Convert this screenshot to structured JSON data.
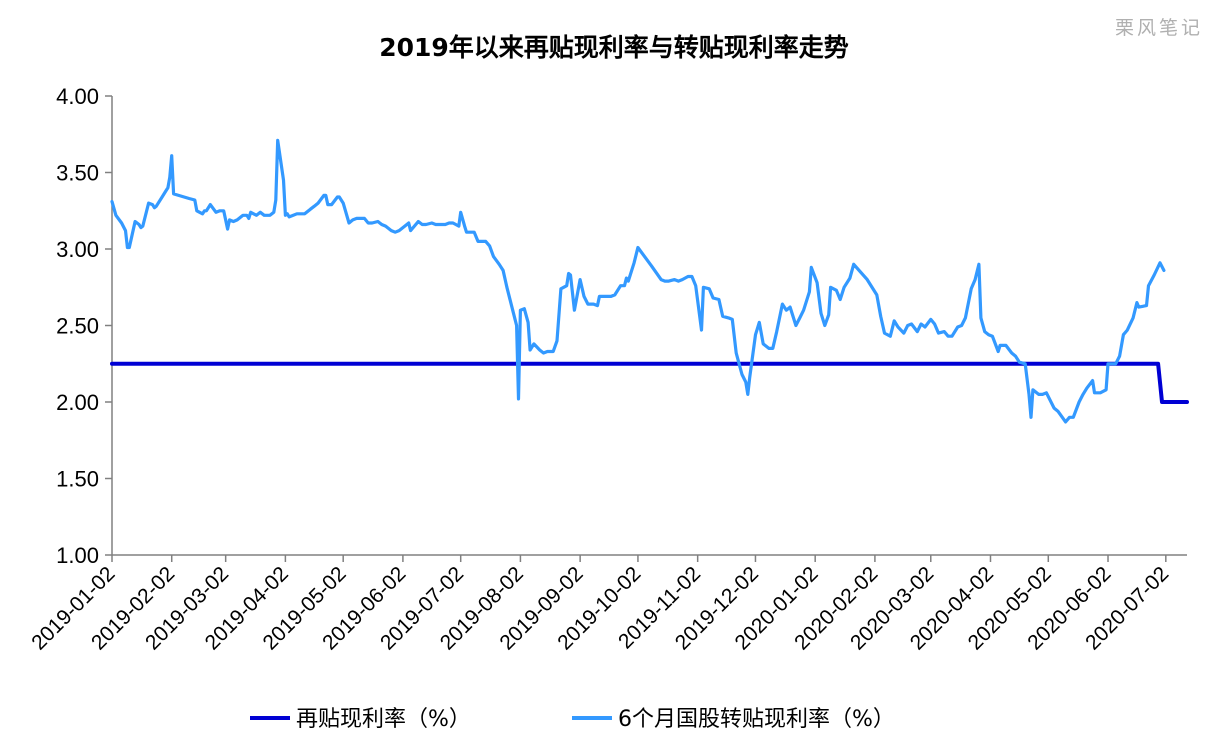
{
  "watermark": "栗风笔记",
  "chart_data": {
    "type": "line",
    "title": "2019年以来再贴现利率与转贴现利率走势",
    "xlabel": "",
    "ylabel": "",
    "ylim": [
      1.0,
      4.0
    ],
    "yticks": [
      "1.00",
      "1.50",
      "2.00",
      "2.50",
      "3.00",
      "3.50",
      "4.00"
    ],
    "xticks": [
      "2019-01-02",
      "2019-02-02",
      "2019-03-02",
      "2019-04-02",
      "2019-05-02",
      "2019-06-02",
      "2019-07-02",
      "2019-08-02",
      "2019-09-02",
      "2019-10-02",
      "2019-11-02",
      "2019-12-02",
      "2020-01-02",
      "2020-02-02",
      "2020-03-02",
      "2020-04-02",
      "2020-05-02",
      "2020-06-02",
      "2020-07-02"
    ],
    "xlim": [
      "2019-01-02",
      "2020-07-13"
    ],
    "grid": false,
    "legend_position": "bottom",
    "series": [
      {
        "name": "再贴现利率（%）",
        "color": "#0000d4",
        "points": [
          [
            "2019-01-02",
            2.25
          ],
          [
            "2020-06-28",
            2.25
          ],
          [
            "2020-06-30",
            2.0
          ],
          [
            "2020-07-13",
            2.0
          ]
        ]
      },
      {
        "name": "6个月国股转贴现利率（%）",
        "color": "#3399ff",
        "points": [
          [
            "2019-01-02",
            3.31
          ],
          [
            "2019-01-04",
            3.22
          ],
          [
            "2019-01-07",
            3.17
          ],
          [
            "2019-01-09",
            3.12
          ],
          [
            "2019-01-10",
            3.01
          ],
          [
            "2019-01-11",
            3.01
          ],
          [
            "2019-01-14",
            3.18
          ],
          [
            "2019-01-16",
            3.16
          ],
          [
            "2019-01-17",
            3.14
          ],
          [
            "2019-01-18",
            3.15
          ],
          [
            "2019-01-21",
            3.3
          ],
          [
            "2019-01-23",
            3.29
          ],
          [
            "2019-01-24",
            3.27
          ],
          [
            "2019-01-25",
            3.28
          ],
          [
            "2019-01-28",
            3.34
          ],
          [
            "2019-01-30",
            3.38
          ],
          [
            "2019-01-31",
            3.4
          ],
          [
            "2019-02-01",
            3.47
          ],
          [
            "2019-02-02",
            3.61
          ],
          [
            "2019-02-03",
            3.36
          ],
          [
            "2019-02-11",
            3.33
          ],
          [
            "2019-02-14",
            3.32
          ],
          [
            "2019-02-15",
            3.25
          ],
          [
            "2019-02-18",
            3.23
          ],
          [
            "2019-02-19",
            3.25
          ],
          [
            "2019-02-20",
            3.25
          ],
          [
            "2019-02-22",
            3.29
          ],
          [
            "2019-02-25",
            3.24
          ],
          [
            "2019-02-27",
            3.25
          ],
          [
            "2019-03-01",
            3.25
          ],
          [
            "2019-03-03",
            3.13
          ],
          [
            "2019-03-04",
            3.19
          ],
          [
            "2019-03-06",
            3.18
          ],
          [
            "2019-03-08",
            3.19
          ],
          [
            "2019-03-11",
            3.22
          ],
          [
            "2019-03-13",
            3.22
          ],
          [
            "2019-03-14",
            3.2
          ],
          [
            "2019-03-15",
            3.24
          ],
          [
            "2019-03-18",
            3.22
          ],
          [
            "2019-03-20",
            3.24
          ],
          [
            "2019-03-22",
            3.22
          ],
          [
            "2019-03-25",
            3.22
          ],
          [
            "2019-03-27",
            3.24
          ],
          [
            "2019-03-28",
            3.32
          ],
          [
            "2019-03-29",
            3.71
          ],
          [
            "2019-04-01",
            3.45
          ],
          [
            "2019-04-02",
            3.22
          ],
          [
            "2019-04-03",
            3.23
          ],
          [
            "2019-04-04",
            3.21
          ],
          [
            "2019-04-08",
            3.23
          ],
          [
            "2019-04-10",
            3.23
          ],
          [
            "2019-04-12",
            3.23
          ],
          [
            "2019-04-15",
            3.26
          ],
          [
            "2019-04-17",
            3.28
          ],
          [
            "2019-04-19",
            3.3
          ],
          [
            "2019-04-22",
            3.35
          ],
          [
            "2019-04-23",
            3.35
          ],
          [
            "2019-04-24",
            3.29
          ],
          [
            "2019-04-26",
            3.29
          ],
          [
            "2019-04-29",
            3.34
          ],
          [
            "2019-04-30",
            3.34
          ],
          [
            "2019-05-02",
            3.3
          ],
          [
            "2019-05-05",
            3.17
          ],
          [
            "2019-05-07",
            3.19
          ],
          [
            "2019-05-09",
            3.2
          ],
          [
            "2019-05-13",
            3.2
          ],
          [
            "2019-05-15",
            3.17
          ],
          [
            "2019-05-17",
            3.17
          ],
          [
            "2019-05-20",
            3.18
          ],
          [
            "2019-05-22",
            3.16
          ],
          [
            "2019-05-24",
            3.15
          ],
          [
            "2019-05-27",
            3.12
          ],
          [
            "2019-05-29",
            3.11
          ],
          [
            "2019-05-31",
            3.12
          ],
          [
            "2019-06-03",
            3.15
          ],
          [
            "2019-06-05",
            3.17
          ],
          [
            "2019-06-06",
            3.12
          ],
          [
            "2019-06-10",
            3.18
          ],
          [
            "2019-06-12",
            3.16
          ],
          [
            "2019-06-14",
            3.16
          ],
          [
            "2019-06-17",
            3.17
          ],
          [
            "2019-06-19",
            3.16
          ],
          [
            "2019-06-21",
            3.16
          ],
          [
            "2019-06-24",
            3.16
          ],
          [
            "2019-06-26",
            3.17
          ],
          [
            "2019-06-28",
            3.17
          ],
          [
            "2019-07-01",
            3.15
          ],
          [
            "2019-07-02",
            3.24
          ],
          [
            "2019-07-04",
            3.15
          ],
          [
            "2019-07-05",
            3.11
          ],
          [
            "2019-07-09",
            3.11
          ],
          [
            "2019-07-11",
            3.05
          ],
          [
            "2019-07-15",
            3.05
          ],
          [
            "2019-07-17",
            3.02
          ],
          [
            "2019-07-19",
            2.95
          ],
          [
            "2019-07-22",
            2.9
          ],
          [
            "2019-07-24",
            2.86
          ],
          [
            "2019-07-26",
            2.75
          ],
          [
            "2019-07-29",
            2.6
          ],
          [
            "2019-07-31",
            2.5
          ],
          [
            "2019-08-01",
            2.02
          ],
          [
            "2019-08-02",
            2.6
          ],
          [
            "2019-08-04",
            2.61
          ],
          [
            "2019-08-06",
            2.52
          ],
          [
            "2019-08-07",
            2.34
          ],
          [
            "2019-08-09",
            2.38
          ],
          [
            "2019-08-12",
            2.34
          ],
          [
            "2019-08-14",
            2.32
          ],
          [
            "2019-08-16",
            2.33
          ],
          [
            "2019-08-19",
            2.33
          ],
          [
            "2019-08-21",
            2.4
          ],
          [
            "2019-08-23",
            2.74
          ],
          [
            "2019-08-26",
            2.76
          ],
          [
            "2019-08-27",
            2.84
          ],
          [
            "2019-08-28",
            2.83
          ],
          [
            "2019-08-30",
            2.6
          ],
          [
            "2019-09-02",
            2.8
          ],
          [
            "2019-09-04",
            2.69
          ],
          [
            "2019-09-06",
            2.64
          ],
          [
            "2019-09-09",
            2.64
          ],
          [
            "2019-09-11",
            2.63
          ],
          [
            "2019-09-12",
            2.69
          ],
          [
            "2019-09-16",
            2.69
          ],
          [
            "2019-09-18",
            2.69
          ],
          [
            "2019-09-20",
            2.7
          ],
          [
            "2019-09-23",
            2.76
          ],
          [
            "2019-09-25",
            2.76
          ],
          [
            "2019-09-26",
            2.81
          ],
          [
            "2019-09-27",
            2.79
          ],
          [
            "2019-09-30",
            2.91
          ],
          [
            "2019-10-02",
            3.01
          ],
          [
            "2019-10-09",
            2.89
          ],
          [
            "2019-10-14",
            2.8
          ],
          [
            "2019-10-16",
            2.79
          ],
          [
            "2019-10-18",
            2.79
          ],
          [
            "2019-10-21",
            2.8
          ],
          [
            "2019-10-23",
            2.79
          ],
          [
            "2019-10-25",
            2.8
          ],
          [
            "2019-10-28",
            2.82
          ],
          [
            "2019-10-30",
            2.82
          ],
          [
            "2019-11-01",
            2.76
          ],
          [
            "2019-11-04",
            2.47
          ],
          [
            "2019-11-05",
            2.75
          ],
          [
            "2019-11-08",
            2.74
          ],
          [
            "2019-11-10",
            2.68
          ],
          [
            "2019-11-13",
            2.67
          ],
          [
            "2019-11-15",
            2.56
          ],
          [
            "2019-11-18",
            2.55
          ],
          [
            "2019-11-20",
            2.54
          ],
          [
            "2019-11-22",
            2.32
          ],
          [
            "2019-11-25",
            2.18
          ],
          [
            "2019-11-27",
            2.13
          ],
          [
            "2019-11-28",
            2.05
          ],
          [
            "2019-11-29",
            2.16
          ],
          [
            "2019-12-02",
            2.44
          ],
          [
            "2019-12-04",
            2.52
          ],
          [
            "2019-12-06",
            2.38
          ],
          [
            "2019-12-09",
            2.35
          ],
          [
            "2019-12-11",
            2.35
          ],
          [
            "2019-12-13",
            2.46
          ],
          [
            "2019-12-16",
            2.64
          ],
          [
            "2019-12-18",
            2.6
          ],
          [
            "2019-12-20",
            2.62
          ],
          [
            "2019-12-23",
            2.5
          ],
          [
            "2019-12-25",
            2.55
          ],
          [
            "2019-12-27",
            2.6
          ],
          [
            "2019-12-30",
            2.72
          ],
          [
            "2019-12-31",
            2.88
          ],
          [
            "2020-01-03",
            2.78
          ],
          [
            "2020-01-05",
            2.58
          ],
          [
            "2020-01-07",
            2.5
          ],
          [
            "2020-01-09",
            2.57
          ],
          [
            "2020-01-10",
            2.75
          ],
          [
            "2020-01-13",
            2.73
          ],
          [
            "2020-01-15",
            2.67
          ],
          [
            "2020-01-17",
            2.75
          ],
          [
            "2020-01-20",
            2.81
          ],
          [
            "2020-01-22",
            2.9
          ],
          [
            "2020-01-29",
            2.8
          ],
          [
            "2020-02-03",
            2.7
          ],
          [
            "2020-02-05",
            2.56
          ],
          [
            "2020-02-07",
            2.45
          ],
          [
            "2020-02-10",
            2.43
          ],
          [
            "2020-02-12",
            2.53
          ],
          [
            "2020-02-14",
            2.49
          ],
          [
            "2020-02-17",
            2.45
          ],
          [
            "2020-02-19",
            2.5
          ],
          [
            "2020-02-21",
            2.51
          ],
          [
            "2020-02-24",
            2.46
          ],
          [
            "2020-02-26",
            2.51
          ],
          [
            "2020-02-28",
            2.49
          ],
          [
            "2020-03-02",
            2.54
          ],
          [
            "2020-03-04",
            2.51
          ],
          [
            "2020-03-06",
            2.45
          ],
          [
            "2020-03-09",
            2.46
          ],
          [
            "2020-03-11",
            2.43
          ],
          [
            "2020-03-13",
            2.43
          ],
          [
            "2020-03-16",
            2.49
          ],
          [
            "2020-03-18",
            2.5
          ],
          [
            "2020-03-20",
            2.55
          ],
          [
            "2020-03-23",
            2.74
          ],
          [
            "2020-03-25",
            2.8
          ],
          [
            "2020-03-27",
            2.9
          ],
          [
            "2020-03-28",
            2.55
          ],
          [
            "2020-03-30",
            2.46
          ],
          [
            "2020-04-01",
            2.44
          ],
          [
            "2020-04-03",
            2.43
          ],
          [
            "2020-04-06",
            2.33
          ],
          [
            "2020-04-07",
            2.37
          ],
          [
            "2020-04-10",
            2.37
          ],
          [
            "2020-04-13",
            2.32
          ],
          [
            "2020-04-15",
            2.3
          ],
          [
            "2020-04-17",
            2.26
          ],
          [
            "2020-04-20",
            2.25
          ],
          [
            "2020-04-22",
            2.05
          ],
          [
            "2020-04-23",
            1.9
          ],
          [
            "2020-04-24",
            2.08
          ],
          [
            "2020-04-27",
            2.05
          ],
          [
            "2020-04-29",
            2.05
          ],
          [
            "2020-05-01",
            2.06
          ],
          [
            "2020-05-05",
            1.96
          ],
          [
            "2020-05-07",
            1.94
          ],
          [
            "2020-05-11",
            1.87
          ],
          [
            "2020-05-13",
            1.9
          ],
          [
            "2020-05-15",
            1.9
          ],
          [
            "2020-05-18",
            2.0
          ],
          [
            "2020-05-20",
            2.05
          ],
          [
            "2020-05-22",
            2.09
          ],
          [
            "2020-05-25",
            2.14
          ],
          [
            "2020-05-26",
            2.06
          ],
          [
            "2020-05-28",
            2.06
          ],
          [
            "2020-05-29",
            2.06
          ],
          [
            "2020-06-01",
            2.08
          ],
          [
            "2020-06-02",
            2.25
          ],
          [
            "2020-06-04",
            2.25
          ],
          [
            "2020-06-06",
            2.25
          ],
          [
            "2020-06-08",
            2.3
          ],
          [
            "2020-06-10",
            2.44
          ],
          [
            "2020-06-12",
            2.47
          ],
          [
            "2020-06-15",
            2.55
          ],
          [
            "2020-06-17",
            2.65
          ],
          [
            "2020-06-18",
            2.62
          ],
          [
            "2020-06-22",
            2.63
          ],
          [
            "2020-06-23",
            2.76
          ],
          [
            "2020-06-26",
            2.83
          ],
          [
            "2020-06-29",
            2.91
          ],
          [
            "2020-07-01",
            2.86
          ]
        ]
      }
    ]
  }
}
